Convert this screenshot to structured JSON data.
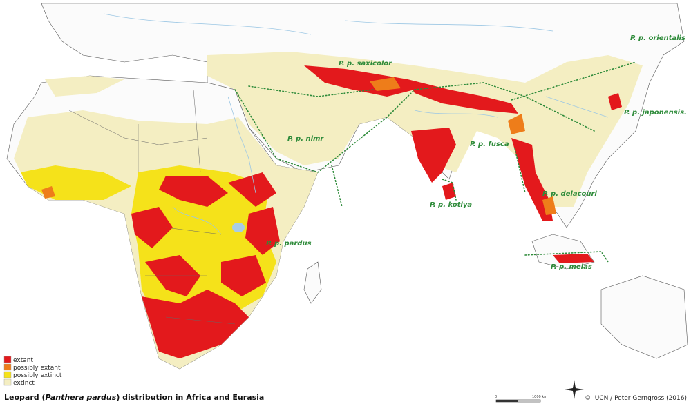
{
  "title": {
    "prefix": "Leopard (",
    "species": "Panthera pardus",
    "suffix": ") distribution in Africa and Eurasia"
  },
  "legend": [
    {
      "label": "extant",
      "color": "#e3191c"
    },
    {
      "label": "possibly extant",
      "color": "#ee7d1a"
    },
    {
      "label": "possibly extinct",
      "color": "#f5e21a"
    },
    {
      "label": "extinct",
      "color": "#f4eec2"
    }
  ],
  "subspecies": [
    "P. p. saxicolor",
    "P. p. orientalis",
    "P. p. japonensis.",
    "P. p. nimr",
    "P. p. fusca",
    "P. p. kotiya",
    "P. p. delacouri",
    "P. p. pardus",
    "P. p. melas"
  ],
  "scale_bar": {
    "start": "0",
    "end": "1000 km"
  },
  "credit": "© IUCN / Peter Gerngross (2016)"
}
